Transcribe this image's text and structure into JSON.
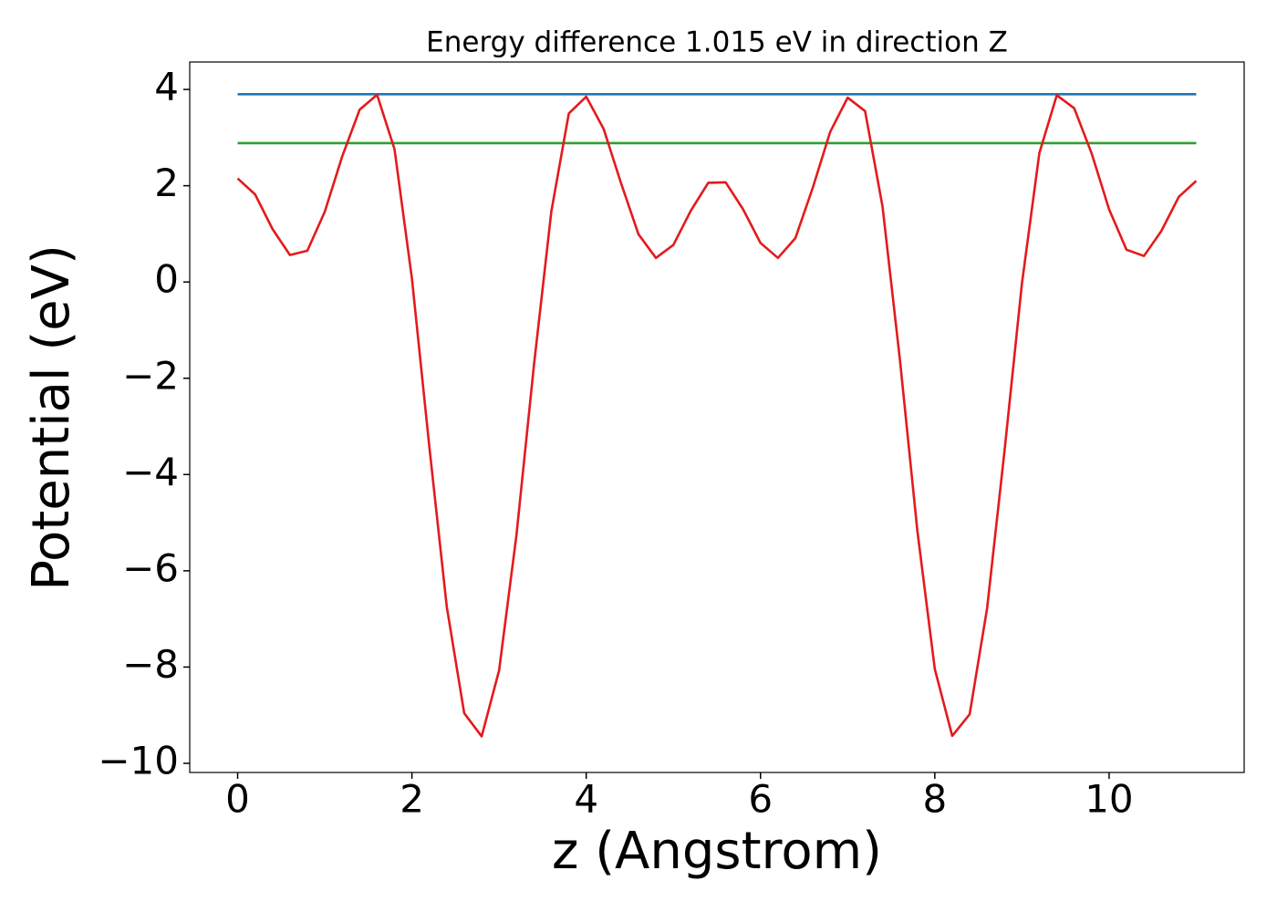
{
  "chart_data": {
    "type": "line",
    "title": "Energy difference 1.015 eV in direction Z",
    "xlabel": "z (Angstrom)",
    "ylabel": "Potential (eV)",
    "xlim": [
      -0.55,
      11.55
    ],
    "ylim": [
      -10.19,
      4.57
    ],
    "xticks": [
      0,
      2,
      4,
      6,
      8,
      10
    ],
    "yticks": [
      {
        "value": -10,
        "label": "−10"
      },
      {
        "value": -8,
        "label": "−8"
      },
      {
        "value": -6,
        "label": "−6"
      },
      {
        "value": -4,
        "label": "−4"
      },
      {
        "value": -2,
        "label": "−2"
      },
      0,
      2,
      4
    ],
    "grid": false,
    "series": [
      {
        "color": "#1f77b4",
        "x": [
          0,
          11
        ],
        "values": [
          3.9,
          3.9
        ]
      },
      {
        "color": "#2ca02c",
        "x": [
          0,
          11
        ],
        "values": [
          2.885,
          2.885
        ]
      },
      {
        "color": "#e41a1c",
        "x": [
          0,
          0.2,
          0.4,
          0.6,
          0.8,
          1.0,
          1.2,
          1.4,
          1.6,
          1.8,
          2.0,
          2.2,
          2.4,
          2.6,
          2.8,
          3.0,
          3.2,
          3.4,
          3.6,
          3.8,
          4.0,
          4.2,
          4.4,
          4.6,
          4.8,
          5.0,
          5.2,
          5.4,
          5.6,
          5.8,
          6.0,
          6.2,
          6.4,
          6.6,
          6.8,
          7.0,
          7.2,
          7.4,
          7.6,
          7.8,
          8.0,
          8.2,
          8.4,
          8.6,
          8.8,
          9.0,
          9.2,
          9.4,
          9.6,
          9.8,
          10.0,
          10.2,
          10.4,
          10.6,
          10.8,
          11.0
        ],
        "values": [
          2.15,
          1.82,
          1.1,
          0.56,
          0.65,
          1.46,
          2.61,
          3.58,
          3.89,
          2.76,
          0.07,
          -3.43,
          -6.75,
          -8.96,
          -9.44,
          -8.07,
          -5.25,
          -1.73,
          1.47,
          3.5,
          3.85,
          3.18,
          2.05,
          0.99,
          0.5,
          0.77,
          1.48,
          2.06,
          2.07,
          1.51,
          0.81,
          0.5,
          0.91,
          1.96,
          3.12,
          3.83,
          3.55,
          1.57,
          -1.62,
          -5.17,
          -8.04,
          -9.43,
          -8.98,
          -6.78,
          -3.51,
          -0.03,
          2.68,
          3.88,
          3.61,
          2.67,
          1.51,
          0.67,
          0.54,
          1.06,
          1.77,
          2.1
        ]
      }
    ]
  }
}
